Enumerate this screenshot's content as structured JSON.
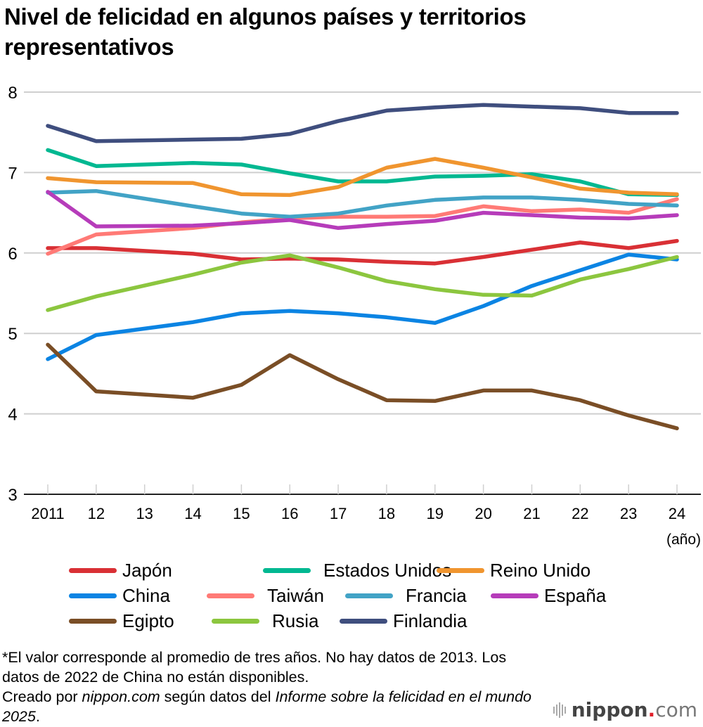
{
  "title": "Nivel de felicidad en algunos países y territorios representativos",
  "chart_data": {
    "type": "line",
    "title": "Nivel de felicidad en algunos países y territorios representativos",
    "xlabel": "(año)",
    "ylabel": "",
    "x": [
      2011,
      2012,
      2013,
      2014,
      2015,
      2016,
      2017,
      2018,
      2019,
      2020,
      2021,
      2022,
      2023,
      2024
    ],
    "x_tick_labels": [
      "2011",
      "12",
      "13",
      "14",
      "15",
      "16",
      "17",
      "18",
      "19",
      "20",
      "21",
      "22",
      "23",
      "24"
    ],
    "ylim": [
      3,
      8
    ],
    "y_ticks": [
      3,
      4,
      5,
      6,
      7,
      8
    ],
    "grid": true,
    "legend_position": "bottom",
    "series": [
      {
        "name": "Japón",
        "color": "#d93035",
        "values": [
          6.06,
          6.06,
          null,
          5.99,
          5.92,
          5.93,
          5.92,
          5.89,
          5.87,
          5.95,
          6.04,
          6.13,
          6.06,
          6.15
        ]
      },
      {
        "name": "Estados Unidos",
        "color": "#00b891",
        "values": [
          7.28,
          7.08,
          null,
          7.12,
          7.1,
          6.99,
          6.89,
          6.89,
          6.95,
          6.96,
          6.98,
          6.89,
          6.73,
          6.72
        ]
      },
      {
        "name": "Reino Unido",
        "color": "#f0952f",
        "values": [
          6.93,
          6.88,
          null,
          6.87,
          6.73,
          6.72,
          6.82,
          7.06,
          7.17,
          7.06,
          6.94,
          6.8,
          6.75,
          6.73
        ]
      },
      {
        "name": "China",
        "color": "#0b84e3",
        "values": [
          4.68,
          4.98,
          null,
          5.14,
          5.25,
          5.28,
          5.25,
          5.2,
          5.13,
          5.34,
          5.59,
          null,
          5.98,
          5.92
        ]
      },
      {
        "name": "Taiwán",
        "color": "#ff7a76",
        "values": [
          5.99,
          6.23,
          null,
          6.31,
          6.38,
          6.43,
          6.45,
          6.45,
          6.46,
          6.58,
          6.52,
          6.54,
          6.5,
          6.67
        ]
      },
      {
        "name": "Francia",
        "color": "#42a3c6",
        "values": [
          6.75,
          6.77,
          null,
          6.58,
          6.49,
          6.45,
          6.49,
          6.59,
          6.66,
          6.69,
          6.69,
          6.66,
          6.61,
          6.59
        ]
      },
      {
        "name": "España",
        "color": "#b63cba",
        "values": [
          6.76,
          6.33,
          null,
          6.34,
          6.37,
          6.41,
          6.31,
          6.36,
          6.4,
          6.5,
          6.47,
          6.44,
          6.43,
          6.47
        ]
      },
      {
        "name": "Egipto",
        "color": "#7a4e26",
        "values": [
          4.86,
          4.28,
          null,
          4.2,
          4.36,
          4.73,
          4.43,
          4.17,
          4.16,
          4.29,
          4.29,
          4.17,
          3.98,
          3.82
        ]
      },
      {
        "name": "Rusia",
        "color": "#8cc63f",
        "values": [
          5.29,
          5.46,
          null,
          5.73,
          5.88,
          5.97,
          5.82,
          5.65,
          5.55,
          5.48,
          5.47,
          5.67,
          5.8,
          5.95
        ]
      },
      {
        "name": "Finlandia",
        "color": "#3f4e7e",
        "values": [
          7.58,
          7.39,
          null,
          7.41,
          7.42,
          7.48,
          7.64,
          7.77,
          7.81,
          7.84,
          7.82,
          7.8,
          7.74,
          7.74
        ]
      }
    ]
  },
  "footnote": {
    "line1": "*El valor corresponde al promedio de tres años. No hay datos de 2013. Los datos de 2022 de China no están disponibles.",
    "credit_prefix": "Creado por ",
    "credit_site": "nippon.com",
    "credit_middle": " según datos del ",
    "credit_report": "Informe sobre la felicidad en el mundo 2025",
    "credit_suffix": "."
  },
  "logo": {
    "brand": "nippon",
    "dot": ".",
    "tld": "com",
    "accent_color": "#e0202a"
  }
}
